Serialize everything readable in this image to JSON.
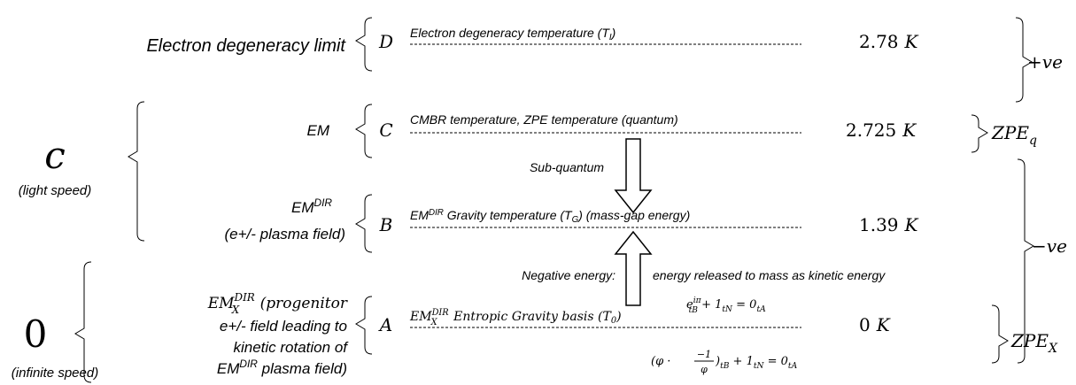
{
  "left_groups": {
    "c": {
      "symbol": "c",
      "caption": "(light speed)"
    },
    "zero": {
      "symbol": "0",
      "caption": "(infinite speed)"
    }
  },
  "labels": {
    "d": "Electron degeneracy limit",
    "c": "EM",
    "b": {
      "em": "EM",
      "sup": "DIR",
      "line2": "(e+/- plasma field)"
    },
    "a": {
      "em": "EM",
      "sub": "X",
      "sup": "DIR",
      "line1_rest": " (progenitor",
      "line2": "e+/- field leading to",
      "line3": "kinetic rotation of",
      "line4_em": "EM",
      "line4_sup": "DIR",
      "line4_rest": " plasma field)"
    }
  },
  "levels": [
    {
      "letter": "D",
      "value": "2.78",
      "unit": "K"
    },
    {
      "letter": "C",
      "value": "2.725",
      "unit": "K"
    },
    {
      "letter": "B",
      "value": "1.39",
      "unit": "K"
    },
    {
      "letter": "A",
      "value": "0",
      "unit": "K"
    }
  ],
  "descriptions": {
    "d": {
      "text": "Electron degeneracy temperature (T",
      "sub": "I",
      "end": ")"
    },
    "c": "CMBR temperature, ZPE temperature (quantum)",
    "b": {
      "em": "EM",
      "sup": "DIR",
      "text": " Gravity temperature (T",
      "sub": "G",
      "end": ") (mass-gap energy)"
    },
    "a": {
      "em": "EM",
      "sub": "X",
      "sup": "DIR",
      "text": " Entropic Gravity basis (T",
      "sub2": "0",
      "end": ")"
    }
  },
  "right": {
    "pos": {
      "sign": "+",
      "ve": "ve"
    },
    "zpe_q": {
      "main": "ZPE",
      "sub": "q"
    },
    "neg": {
      "sign": "−",
      "ve": "ve"
    },
    "zpe_x": {
      "main": "ZPE",
      "sub": "X"
    }
  },
  "annotations": {
    "sub_quantum": "Sub-quantum",
    "neg1": "Negative energy:",
    "neg2": "energy released to mass as kinetic energy"
  },
  "equations": {
    "eq1": {
      "e": "e",
      "sup": "iπ",
      "sub1": "tB",
      "plus": " + 1",
      "sub2": "tN",
      "eq": " = 0",
      "sub3": "tA"
    },
    "eq2": {
      "open": "(φ ·",
      "num": "−1",
      "den": "φ",
      "close": ")",
      "sub1": "tB",
      "plus": " + 1",
      "sub2": "tN",
      "eq": " = 0",
      "sub3": "tA"
    }
  }
}
